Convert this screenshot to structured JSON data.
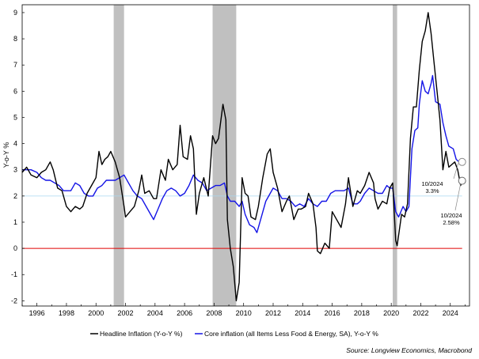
{
  "chart_data": {
    "type": "line",
    "title": "",
    "xlabel": "",
    "ylabel": "Y-o-Y %",
    "xlim": [
      1995.0,
      2025.3
    ],
    "ylim": [
      -2.2,
      9.3
    ],
    "x_ticks": [
      1996,
      1998,
      2000,
      2002,
      2004,
      2006,
      2008,
      2010,
      2012,
      2014,
      2016,
      2018,
      2020,
      2022,
      2024
    ],
    "y_ticks": [
      -2,
      -1,
      0,
      1,
      2,
      3,
      4,
      5,
      6,
      7,
      8,
      9
    ],
    "recessions": [
      [
        2001.2,
        2001.9
      ],
      [
        2007.9,
        2009.5
      ],
      [
        2020.1,
        2020.4
      ]
    ],
    "reference_lines": [
      {
        "name": "zero",
        "value": 0,
        "color": "#e00000"
      },
      {
        "name": "target",
        "value": 2,
        "color": "#a8d8f0"
      }
    ],
    "legend": {
      "position": "bottom"
    },
    "series": [
      {
        "name": "Headline Inflation (Y-o-Y %)",
        "color": "#000000",
        "points": [
          [
            1995.0,
            2.9
          ],
          [
            1995.3,
            3.1
          ],
          [
            1995.6,
            2.8
          ],
          [
            1996.0,
            2.7
          ],
          [
            1996.3,
            2.9
          ],
          [
            1996.6,
            3.0
          ],
          [
            1996.9,
            3.3
          ],
          [
            1997.1,
            3.0
          ],
          [
            1997.4,
            2.3
          ],
          [
            1997.7,
            2.2
          ],
          [
            1998.0,
            1.6
          ],
          [
            1998.3,
            1.4
          ],
          [
            1998.6,
            1.6
          ],
          [
            1998.9,
            1.5
          ],
          [
            1999.1,
            1.6
          ],
          [
            1999.4,
            2.1
          ],
          [
            1999.7,
            2.4
          ],
          [
            2000.0,
            2.7
          ],
          [
            2000.2,
            3.7
          ],
          [
            2000.4,
            3.2
          ],
          [
            2000.6,
            3.4
          ],
          [
            2000.8,
            3.5
          ],
          [
            2001.0,
            3.7
          ],
          [
            2001.3,
            3.3
          ],
          [
            2001.6,
            2.7
          ],
          [
            2001.9,
            1.6
          ],
          [
            2002.0,
            1.2
          ],
          [
            2002.3,
            1.4
          ],
          [
            2002.6,
            1.6
          ],
          [
            2002.9,
            2.2
          ],
          [
            2003.1,
            2.8
          ],
          [
            2003.3,
            2.1
          ],
          [
            2003.6,
            2.2
          ],
          [
            2003.9,
            1.9
          ],
          [
            2004.1,
            1.9
          ],
          [
            2004.4,
            3.0
          ],
          [
            2004.7,
            2.6
          ],
          [
            2004.9,
            3.4
          ],
          [
            2005.2,
            3.0
          ],
          [
            2005.5,
            3.2
          ],
          [
            2005.7,
            4.7
          ],
          [
            2005.9,
            3.5
          ],
          [
            2006.2,
            3.4
          ],
          [
            2006.4,
            4.3
          ],
          [
            2006.6,
            3.8
          ],
          [
            2006.8,
            1.3
          ],
          [
            2007.0,
            2.1
          ],
          [
            2007.3,
            2.7
          ],
          [
            2007.6,
            2.0
          ],
          [
            2007.9,
            4.3
          ],
          [
            2008.1,
            4.0
          ],
          [
            2008.3,
            4.2
          ],
          [
            2008.6,
            5.5
          ],
          [
            2008.8,
            4.9
          ],
          [
            2008.9,
            1.1
          ],
          [
            2009.1,
            0.0
          ],
          [
            2009.3,
            -0.7
          ],
          [
            2009.5,
            -2.0
          ],
          [
            2009.7,
            -1.3
          ],
          [
            2009.9,
            2.7
          ],
          [
            2010.1,
            2.1
          ],
          [
            2010.3,
            2.0
          ],
          [
            2010.5,
            1.2
          ],
          [
            2010.8,
            1.1
          ],
          [
            2011.0,
            1.6
          ],
          [
            2011.3,
            2.7
          ],
          [
            2011.6,
            3.6
          ],
          [
            2011.8,
            3.8
          ],
          [
            2012.0,
            2.9
          ],
          [
            2012.3,
            2.3
          ],
          [
            2012.6,
            1.4
          ],
          [
            2012.9,
            1.8
          ],
          [
            2013.1,
            2.0
          ],
          [
            2013.4,
            1.1
          ],
          [
            2013.7,
            1.5
          ],
          [
            2013.9,
            1.5
          ],
          [
            2014.2,
            1.6
          ],
          [
            2014.4,
            2.1
          ],
          [
            2014.7,
            1.7
          ],
          [
            2014.9,
            0.8
          ],
          [
            2015.0,
            -0.1
          ],
          [
            2015.2,
            -0.2
          ],
          [
            2015.5,
            0.2
          ],
          [
            2015.8,
            0.0
          ],
          [
            2016.0,
            1.4
          ],
          [
            2016.3,
            1.1
          ],
          [
            2016.6,
            0.8
          ],
          [
            2016.9,
            1.7
          ],
          [
            2017.1,
            2.7
          ],
          [
            2017.4,
            1.6
          ],
          [
            2017.7,
            2.2
          ],
          [
            2017.9,
            2.1
          ],
          [
            2018.2,
            2.4
          ],
          [
            2018.5,
            2.9
          ],
          [
            2018.8,
            2.5
          ],
          [
            2018.9,
            1.9
          ],
          [
            2019.1,
            1.5
          ],
          [
            2019.4,
            1.8
          ],
          [
            2019.7,
            1.7
          ],
          [
            2019.9,
            2.3
          ],
          [
            2020.1,
            2.5
          ],
          [
            2020.3,
            0.3
          ],
          [
            2020.4,
            0.1
          ],
          [
            2020.7,
            1.3
          ],
          [
            2020.9,
            1.2
          ],
          [
            2021.1,
            1.7
          ],
          [
            2021.3,
            4.2
          ],
          [
            2021.5,
            5.4
          ],
          [
            2021.7,
            5.4
          ],
          [
            2021.9,
            6.8
          ],
          [
            2022.1,
            7.9
          ],
          [
            2022.3,
            8.3
          ],
          [
            2022.5,
            9.0
          ],
          [
            2022.7,
            8.2
          ],
          [
            2022.9,
            7.1
          ],
          [
            2023.1,
            6.0
          ],
          [
            2023.3,
            4.9
          ],
          [
            2023.5,
            3.0
          ],
          [
            2023.7,
            3.7
          ],
          [
            2023.9,
            3.1
          ],
          [
            2024.1,
            3.2
          ],
          [
            2024.3,
            3.3
          ],
          [
            2024.5,
            3.0
          ],
          [
            2024.7,
            2.4
          ],
          [
            2024.8,
            2.58
          ]
        ]
      },
      {
        "name": "Core inflation (all Items Less Food & Energy, SA), Y-o-Y %",
        "color": "#1414e6",
        "points": [
          [
            1995.0,
            3.0
          ],
          [
            1995.3,
            3.0
          ],
          [
            1995.6,
            3.0
          ],
          [
            1996.0,
            2.9
          ],
          [
            1996.3,
            2.7
          ],
          [
            1996.6,
            2.6
          ],
          [
            1996.9,
            2.6
          ],
          [
            1997.2,
            2.5
          ],
          [
            1997.5,
            2.4
          ],
          [
            1997.8,
            2.2
          ],
          [
            1998.0,
            2.2
          ],
          [
            1998.3,
            2.2
          ],
          [
            1998.6,
            2.5
          ],
          [
            1998.9,
            2.4
          ],
          [
            1999.2,
            2.1
          ],
          [
            1999.5,
            2.0
          ],
          [
            1999.8,
            2.0
          ],
          [
            2000.1,
            2.3
          ],
          [
            2000.4,
            2.4
          ],
          [
            2000.7,
            2.6
          ],
          [
            2001.0,
            2.6
          ],
          [
            2001.3,
            2.6
          ],
          [
            2001.6,
            2.7
          ],
          [
            2001.9,
            2.8
          ],
          [
            2002.2,
            2.5
          ],
          [
            2002.5,
            2.2
          ],
          [
            2002.8,
            2.0
          ],
          [
            2003.1,
            1.9
          ],
          [
            2003.4,
            1.6
          ],
          [
            2003.7,
            1.3
          ],
          [
            2003.9,
            1.1
          ],
          [
            2004.2,
            1.5
          ],
          [
            2004.5,
            1.9
          ],
          [
            2004.8,
            2.2
          ],
          [
            2005.1,
            2.3
          ],
          [
            2005.4,
            2.2
          ],
          [
            2005.7,
            2.0
          ],
          [
            2006.0,
            2.1
          ],
          [
            2006.3,
            2.4
          ],
          [
            2006.6,
            2.8
          ],
          [
            2006.9,
            2.6
          ],
          [
            2007.2,
            2.5
          ],
          [
            2007.5,
            2.2
          ],
          [
            2007.8,
            2.3
          ],
          [
            2008.1,
            2.4
          ],
          [
            2008.4,
            2.4
          ],
          [
            2008.7,
            2.5
          ],
          [
            2008.9,
            2.0
          ],
          [
            2009.1,
            1.8
          ],
          [
            2009.4,
            1.8
          ],
          [
            2009.7,
            1.6
          ],
          [
            2009.9,
            1.8
          ],
          [
            2010.1,
            1.3
          ],
          [
            2010.4,
            0.9
          ],
          [
            2010.7,
            0.8
          ],
          [
            2010.9,
            0.6
          ],
          [
            2011.2,
            1.2
          ],
          [
            2011.5,
            1.8
          ],
          [
            2011.8,
            2.1
          ],
          [
            2012.0,
            2.3
          ],
          [
            2012.3,
            2.2
          ],
          [
            2012.6,
            1.9
          ],
          [
            2012.9,
            1.9
          ],
          [
            2013.2,
            1.8
          ],
          [
            2013.5,
            1.6
          ],
          [
            2013.8,
            1.7
          ],
          [
            2014.1,
            1.6
          ],
          [
            2014.4,
            1.9
          ],
          [
            2014.7,
            1.7
          ],
          [
            2015.0,
            1.6
          ],
          [
            2015.3,
            1.8
          ],
          [
            2015.6,
            1.8
          ],
          [
            2015.9,
            2.1
          ],
          [
            2016.2,
            2.2
          ],
          [
            2016.5,
            2.2
          ],
          [
            2016.8,
            2.2
          ],
          [
            2017.1,
            2.3
          ],
          [
            2017.4,
            1.7
          ],
          [
            2017.7,
            1.7
          ],
          [
            2017.9,
            1.8
          ],
          [
            2018.2,
            2.1
          ],
          [
            2018.5,
            2.3
          ],
          [
            2018.8,
            2.2
          ],
          [
            2019.1,
            2.1
          ],
          [
            2019.4,
            2.1
          ],
          [
            2019.7,
            2.4
          ],
          [
            2019.9,
            2.3
          ],
          [
            2020.1,
            2.3
          ],
          [
            2020.3,
            1.4
          ],
          [
            2020.5,
            1.2
          ],
          [
            2020.8,
            1.6
          ],
          [
            2021.0,
            1.4
          ],
          [
            2021.2,
            1.6
          ],
          [
            2021.4,
            3.8
          ],
          [
            2021.6,
            4.5
          ],
          [
            2021.8,
            4.6
          ],
          [
            2021.9,
            5.5
          ],
          [
            2022.1,
            6.4
          ],
          [
            2022.3,
            6.0
          ],
          [
            2022.5,
            5.9
          ],
          [
            2022.7,
            6.3
          ],
          [
            2022.8,
            6.6
          ],
          [
            2023.0,
            5.6
          ],
          [
            2023.3,
            5.5
          ],
          [
            2023.5,
            4.8
          ],
          [
            2023.7,
            4.3
          ],
          [
            2023.9,
            3.9
          ],
          [
            2024.2,
            3.8
          ],
          [
            2024.4,
            3.4
          ],
          [
            2024.6,
            3.3
          ],
          [
            2024.8,
            3.3
          ]
        ]
      }
    ],
    "annotations": [
      {
        "lines": [
          "10/2024",
          "3.3%"
        ],
        "x": 2024.8,
        "y": 3.3,
        "series": "core"
      },
      {
        "lines": [
          "10/2024",
          "2.58%"
        ],
        "x": 2024.8,
        "y": 2.58,
        "series": "headline"
      }
    ],
    "source": "Source: Longview Economics, Macrobond"
  }
}
